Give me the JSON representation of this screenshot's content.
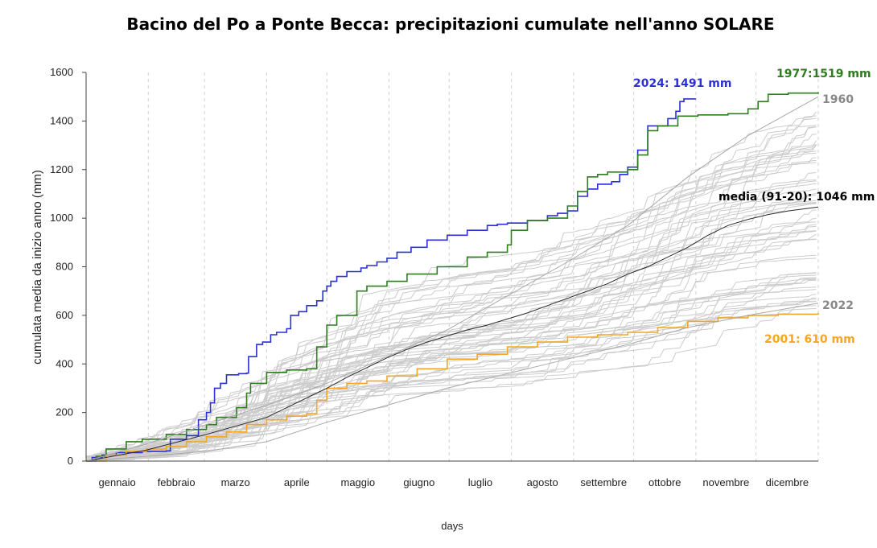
{
  "chart_data": {
    "type": "line",
    "title": "Bacino del Po a Ponte Becca: precipitazioni cumulate nell'anno SOLARE",
    "xlabel": "days",
    "ylabel": "cumulata media da inizio anno (mm)",
    "xlim": [
      0,
      365
    ],
    "ylim": [
      0,
      1600
    ],
    "y_ticks": [
      0,
      200,
      400,
      600,
      800,
      1000,
      1200,
      1400,
      1600
    ],
    "grid": "vertical-dashed",
    "months": [
      {
        "label": "gennaio",
        "start": 0,
        "end": 31
      },
      {
        "label": "febbraio",
        "start": 31,
        "end": 59
      },
      {
        "label": "marzo",
        "start": 59,
        "end": 90
      },
      {
        "label": "aprile",
        "start": 90,
        "end": 120
      },
      {
        "label": "maggio",
        "start": 120,
        "end": 151
      },
      {
        "label": "giugno",
        "start": 151,
        "end": 181
      },
      {
        "label": "luglio",
        "start": 181,
        "end": 212
      },
      {
        "label": "agosto",
        "start": 212,
        "end": 243
      },
      {
        "label": "settembre",
        "start": 243,
        "end": 273
      },
      {
        "label": "ottobre",
        "start": 273,
        "end": 304
      },
      {
        "label": "novembre",
        "start": 304,
        "end": 334
      },
      {
        "label": "dicembre",
        "start": 334,
        "end": 365
      }
    ],
    "series": [
      {
        "label": "2024: 1491 mm",
        "color": "#2b2fd6",
        "x": [
          0,
          3,
          8,
          15,
          28,
          40,
          42,
          50,
          56,
          60,
          62,
          64,
          67,
          70,
          76,
          80,
          81,
          85,
          88,
          90,
          92,
          95,
          100,
          102,
          106,
          110,
          115,
          118,
          120,
          122,
          125,
          130,
          137,
          140,
          145,
          150,
          155,
          162,
          170,
          180,
          190,
          200,
          205,
          210,
          220,
          230,
          235,
          240,
          245,
          250,
          255,
          258,
          262,
          266,
          270,
          275,
          280,
          285,
          290,
          294,
          296,
          298,
          304
        ],
        "y": [
          0,
          15,
          25,
          35,
          40,
          42,
          90,
          105,
          170,
          200,
          240,
          300,
          320,
          355,
          360,
          362,
          430,
          480,
          490,
          490,
          520,
          530,
          545,
          600,
          615,
          640,
          660,
          700,
          720,
          740,
          760,
          780,
          795,
          805,
          820,
          835,
          860,
          880,
          910,
          930,
          950,
          970,
          975,
          980,
          990,
          1010,
          1020,
          1030,
          1090,
          1120,
          1140,
          1140,
          1150,
          1180,
          1210,
          1280,
          1380,
          1380,
          1410,
          1440,
          1480,
          1491,
          1491
        ]
      },
      {
        "label": "1977:1519 mm",
        "color": "#2f7d1f",
        "x": [
          0,
          5,
          10,
          20,
          28,
          40,
          50,
          60,
          65,
          75,
          80,
          82,
          90,
          100,
          110,
          115,
          120,
          125,
          135,
          140,
          150,
          160,
          175,
          190,
          200,
          210,
          212,
          220,
          230,
          240,
          245,
          250,
          255,
          260,
          270,
          275,
          280,
          285,
          295,
          305,
          320,
          330,
          335,
          340,
          350,
          365
        ],
        "y": [
          0,
          20,
          50,
          80,
          90,
          110,
          130,
          150,
          180,
          220,
          280,
          320,
          365,
          375,
          380,
          470,
          560,
          600,
          700,
          720,
          740,
          770,
          800,
          840,
          860,
          890,
          950,
          990,
          1000,
          1050,
          1110,
          1170,
          1180,
          1190,
          1200,
          1260,
          1360,
          1380,
          1420,
          1425,
          1430,
          1450,
          1480,
          1510,
          1515,
          1519
        ]
      },
      {
        "label": "2001: 610 mm",
        "color": "#f5a623",
        "x": [
          0,
          10,
          20,
          30,
          40,
          50,
          60,
          70,
          80,
          90,
          100,
          110,
          115,
          120,
          130,
          140,
          150,
          165,
          180,
          195,
          210,
          225,
          240,
          255,
          270,
          285,
          300,
          315,
          330,
          345,
          365
        ],
        "y": [
          0,
          25,
          40,
          50,
          60,
          80,
          100,
          120,
          150,
          170,
          185,
          195,
          250,
          300,
          320,
          330,
          350,
          380,
          420,
          440,
          470,
          490,
          510,
          520,
          530,
          550,
          575,
          590,
          600,
          605,
          610
        ]
      },
      {
        "label": "media (91-20): 1046 mm",
        "color": "#2a2a2a",
        "x": [
          0,
          30,
          60,
          90,
          100,
          110,
          120,
          130,
          140,
          150,
          160,
          170,
          180,
          190,
          200,
          210,
          220,
          230,
          240,
          250,
          260,
          270,
          280,
          290,
          300,
          310,
          320,
          330,
          340,
          350,
          365
        ],
        "y": [
          0,
          45,
          110,
          180,
          220,
          260,
          300,
          345,
          385,
          425,
          460,
          490,
          515,
          540,
          560,
          585,
          610,
          640,
          670,
          700,
          730,
          770,
          800,
          840,
          880,
          930,
          970,
          995,
          1015,
          1030,
          1046
        ]
      },
      {
        "label": "1960",
        "color": "#a8a8a8",
        "x": [
          0,
          30,
          60,
          90,
          120,
          150,
          180,
          210,
          240,
          270,
          300,
          330,
          365
        ],
        "y": [
          0,
          70,
          150,
          230,
          320,
          430,
          540,
          680,
          820,
          970,
          1170,
          1340,
          1500
        ]
      },
      {
        "label": "2022",
        "color": "#a8a8a8",
        "x": [
          0,
          30,
          60,
          90,
          120,
          150,
          180,
          210,
          240,
          270,
          300,
          330,
          365
        ],
        "y": [
          0,
          20,
          40,
          80,
          160,
          230,
          300,
          360,
          420,
          480,
          550,
          600,
          650
        ]
      }
    ]
  }
}
